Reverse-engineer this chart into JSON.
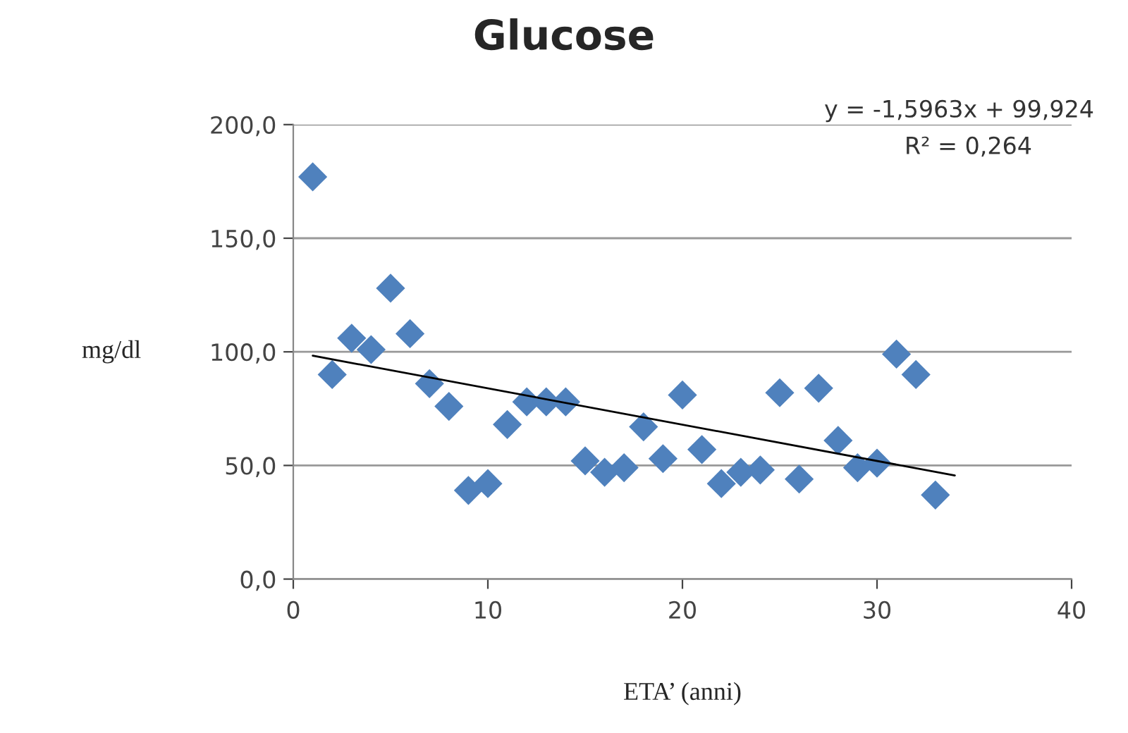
{
  "chart_data": {
    "type": "scatter",
    "title": "Glucose",
    "xlabel": "ETA’ (anni)",
    "ylabel": "mg/dl",
    "annotations": [
      "y = -1,5963x + 99,924",
      "R² = 0,264"
    ],
    "series": [
      {
        "color": "#4f81bd",
        "marker": "diamond",
        "x": [
          1,
          2,
          3,
          4,
          5,
          6,
          7,
          8,
          9,
          10,
          11,
          12,
          13,
          14,
          15,
          16,
          17,
          18,
          19,
          20,
          21,
          22,
          23,
          24,
          25,
          26,
          27,
          28,
          29,
          30,
          31,
          32,
          33
        ],
        "values": [
          177,
          90,
          106,
          101,
          128,
          108,
          86,
          76,
          39,
          42,
          68,
          78,
          78,
          78,
          52,
          47,
          49,
          67,
          53,
          81,
          57,
          42,
          47,
          48,
          82,
          44,
          84,
          61,
          49,
          51,
          99,
          90,
          37
        ]
      },
      {
        "type": "line",
        "color": "#000000",
        "marker": "none",
        "x": [
          1,
          34
        ],
        "values": [
          98.3,
          45.6
        ]
      }
    ],
    "xlim": [
      0,
      40
    ],
    "xticks": [
      0,
      10,
      20,
      30,
      40
    ],
    "ylim": [
      0,
      200
    ],
    "yticks": [
      {
        "value": 0,
        "label": "0,0"
      },
      {
        "value": 50,
        "label": "50,0"
      },
      {
        "value": 100,
        "label": "100,0"
      },
      {
        "value": 150,
        "label": "150,0"
      },
      {
        "value": 200,
        "label": "200,0"
      }
    ],
    "grid": "y",
    "legend": false
  }
}
